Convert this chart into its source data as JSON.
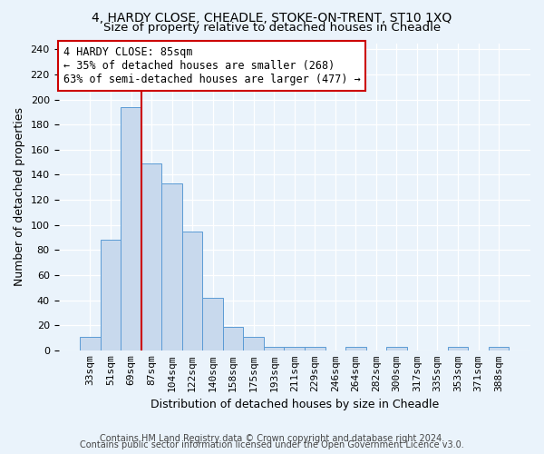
{
  "title": "4, HARDY CLOSE, CHEADLE, STOKE-ON-TRENT, ST10 1XQ",
  "subtitle": "Size of property relative to detached houses in Cheadle",
  "xlabel": "Distribution of detached houses by size in Cheadle",
  "ylabel": "Number of detached properties",
  "bar_labels": [
    "33sqm",
    "51sqm",
    "69sqm",
    "87sqm",
    "104sqm",
    "122sqm",
    "140sqm",
    "158sqm",
    "175sqm",
    "193sqm",
    "211sqm",
    "229sqm",
    "246sqm",
    "264sqm",
    "282sqm",
    "300sqm",
    "317sqm",
    "335sqm",
    "353sqm",
    "371sqm",
    "388sqm"
  ],
  "bar_values": [
    11,
    88,
    194,
    149,
    133,
    95,
    42,
    19,
    11,
    3,
    3,
    3,
    0,
    3,
    0,
    3,
    0,
    0,
    3,
    0,
    3
  ],
  "bar_color": "#c8d9ed",
  "bar_edge_color": "#5b9bd5",
  "property_line_x": 2.5,
  "annotation_text": "4 HARDY CLOSE: 85sqm\n← 35% of detached houses are smaller (268)\n63% of semi-detached houses are larger (477) →",
  "annotation_box_color": "#ffffff",
  "annotation_box_edge_color": "#cc0000",
  "line_color": "#cc0000",
  "ylim": [
    0,
    245
  ],
  "yticks": [
    0,
    20,
    40,
    60,
    80,
    100,
    120,
    140,
    160,
    180,
    200,
    220,
    240
  ],
  "footer1": "Contains HM Land Registry data © Crown copyright and database right 2024.",
  "footer2": "Contains public sector information licensed under the Open Government Licence v3.0.",
  "bg_color": "#eaf3fb",
  "plot_bg_color": "#eaf3fb",
  "grid_color": "#ffffff",
  "title_fontsize": 10,
  "subtitle_fontsize": 9.5,
  "xlabel_fontsize": 9,
  "ylabel_fontsize": 9,
  "tick_fontsize": 8,
  "annotation_fontsize": 8.5,
  "footer_fontsize": 7
}
